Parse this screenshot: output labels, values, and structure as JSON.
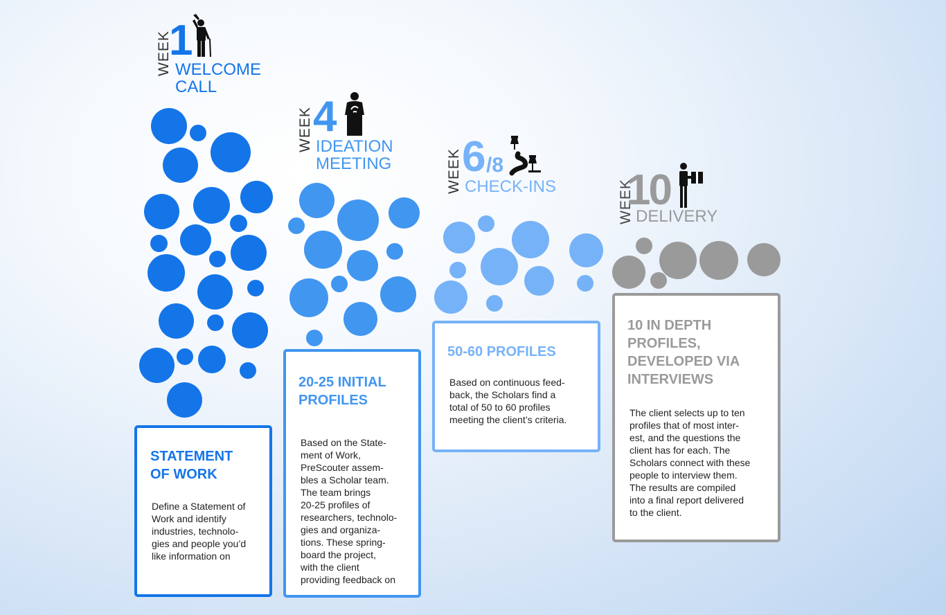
{
  "colors": {
    "stage1": "#1475e8",
    "stage2": "#4196f0",
    "stage3": "#76b2f7",
    "stage4": "#9a9a9a",
    "text": "#222222"
  },
  "stages": [
    {
      "week_label": "WEEK",
      "week_number": "1",
      "title_line1": "WELCOME",
      "title_line2": "CALL",
      "icon": "man-waving-icon",
      "card_heading": "STATEMENT\nOF WORK",
      "card_body": "Define a Statement of\nWork and identify\nindustries, technolo-\ngies and people you’d\nlike information on"
    },
    {
      "week_label": "WEEK",
      "week_number": "4",
      "title_line1": "IDEATION",
      "title_line2": "MEETING",
      "icon": "presenter-podium-icon",
      "card_heading": "20-25 INITIAL\nPROFILES",
      "card_body": "Based on the State-\nment of Work,\nPreScouter assem-\nbles a Scholar team.\nThe team brings\n20-25 profiles of\nresearchers, technolo-\ngies and organiza-\ntions. These  spring-\nboard the project,\nwith the client\nproviding feedback on"
    },
    {
      "week_label": "WEEK",
      "week_number": "6",
      "week_number_suffix": "/8",
      "title_line1": "CHECK-INS",
      "icon": "route-pins-icon",
      "card_heading": "50-60 PROFILES",
      "card_body": "Based on continuous feed-\nback, the Scholars find a\ntotal of 50 to 60 profiles\nmeeting the client’s criteria."
    },
    {
      "week_label": "WEEK",
      "week_number": "10",
      "title_line1": "DELIVERY",
      "icon": "delivery-person-icon",
      "card_heading": "10 IN DEPTH\nPROFILES,\nDEVELOPED VIA\nINTERVIEWS",
      "card_body": "The client selects up to ten\nprofiles that of most inter-\nest, and the questions the\nclient has for each. The\nScholars connect with these\npeople to interview them.\nThe results are compiled\ninto a final report delivered\nto the client."
    }
  ]
}
